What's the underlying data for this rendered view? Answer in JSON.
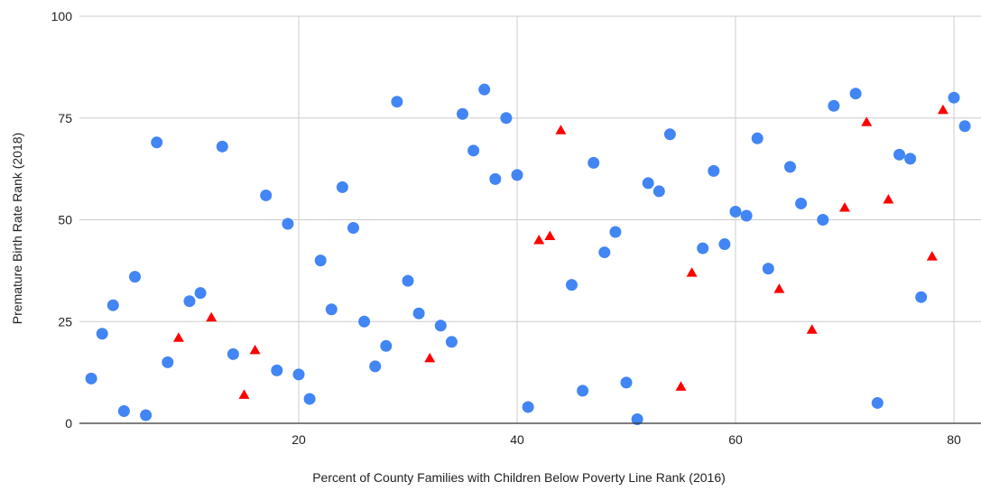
{
  "chart_data": {
    "type": "scatter",
    "title": "",
    "xlabel": "Percent of County Families with Children Below Poverty Line Rank (2016)",
    "ylabel": "Premature Birth Rate Rank (2018)",
    "xlim": [
      0,
      82
    ],
    "ylim": [
      0,
      100
    ],
    "x_ticks": [
      20,
      40,
      60,
      80
    ],
    "y_ticks": [
      0,
      25,
      50,
      75,
      100
    ],
    "grid": true,
    "legend": "none",
    "series": [
      {
        "marker": "circle",
        "color": "#4285f4",
        "points": [
          [
            1,
            11
          ],
          [
            2,
            22
          ],
          [
            3,
            29
          ],
          [
            4,
            3
          ],
          [
            5,
            36
          ],
          [
            6,
            2
          ],
          [
            7,
            69
          ],
          [
            8,
            15
          ],
          [
            10,
            30
          ],
          [
            11,
            32
          ],
          [
            13,
            68
          ],
          [
            14,
            17
          ],
          [
            17,
            56
          ],
          [
            18,
            13
          ],
          [
            19,
            49
          ],
          [
            20,
            12
          ],
          [
            21,
            6
          ],
          [
            22,
            40
          ],
          [
            23,
            28
          ],
          [
            24,
            58
          ],
          [
            25,
            48
          ],
          [
            26,
            25
          ],
          [
            27,
            14
          ],
          [
            28,
            19
          ],
          [
            29,
            79
          ],
          [
            30,
            35
          ],
          [
            31,
            27
          ],
          [
            33,
            24
          ],
          [
            34,
            20
          ],
          [
            35,
            76
          ],
          [
            36,
            67
          ],
          [
            37,
            82
          ],
          [
            38,
            60
          ],
          [
            39,
            75
          ],
          [
            40,
            61
          ],
          [
            41,
            4
          ],
          [
            45,
            34
          ],
          [
            46,
            8
          ],
          [
            47,
            64
          ],
          [
            48,
            42
          ],
          [
            49,
            47
          ],
          [
            50,
            10
          ],
          [
            51,
            1
          ],
          [
            52,
            59
          ],
          [
            53,
            57
          ],
          [
            54,
            71
          ],
          [
            57,
            43
          ],
          [
            58,
            62
          ],
          [
            59,
            44
          ],
          [
            60,
            52
          ],
          [
            61,
            51
          ],
          [
            62,
            70
          ],
          [
            63,
            38
          ],
          [
            65,
            63
          ],
          [
            66,
            54
          ],
          [
            68,
            50
          ],
          [
            69,
            78
          ],
          [
            71,
            81
          ],
          [
            73,
            5
          ],
          [
            75,
            66
          ],
          [
            76,
            65
          ],
          [
            77,
            31
          ],
          [
            80,
            80
          ],
          [
            81,
            73
          ]
        ]
      },
      {
        "marker": "triangle",
        "color": "#ff0000",
        "points": [
          [
            9,
            21
          ],
          [
            12,
            26
          ],
          [
            15,
            7
          ],
          [
            16,
            18
          ],
          [
            32,
            16
          ],
          [
            42,
            45
          ],
          [
            43,
            46
          ],
          [
            44,
            72
          ],
          [
            55,
            9
          ],
          [
            56,
            37
          ],
          [
            64,
            33
          ],
          [
            67,
            23
          ],
          [
            70,
            53
          ],
          [
            72,
            74
          ],
          [
            74,
            55
          ],
          [
            78,
            41
          ],
          [
            79,
            77
          ]
        ]
      }
    ]
  },
  "colors": {
    "grid": "#cccccc",
    "axis": "#333333"
  }
}
